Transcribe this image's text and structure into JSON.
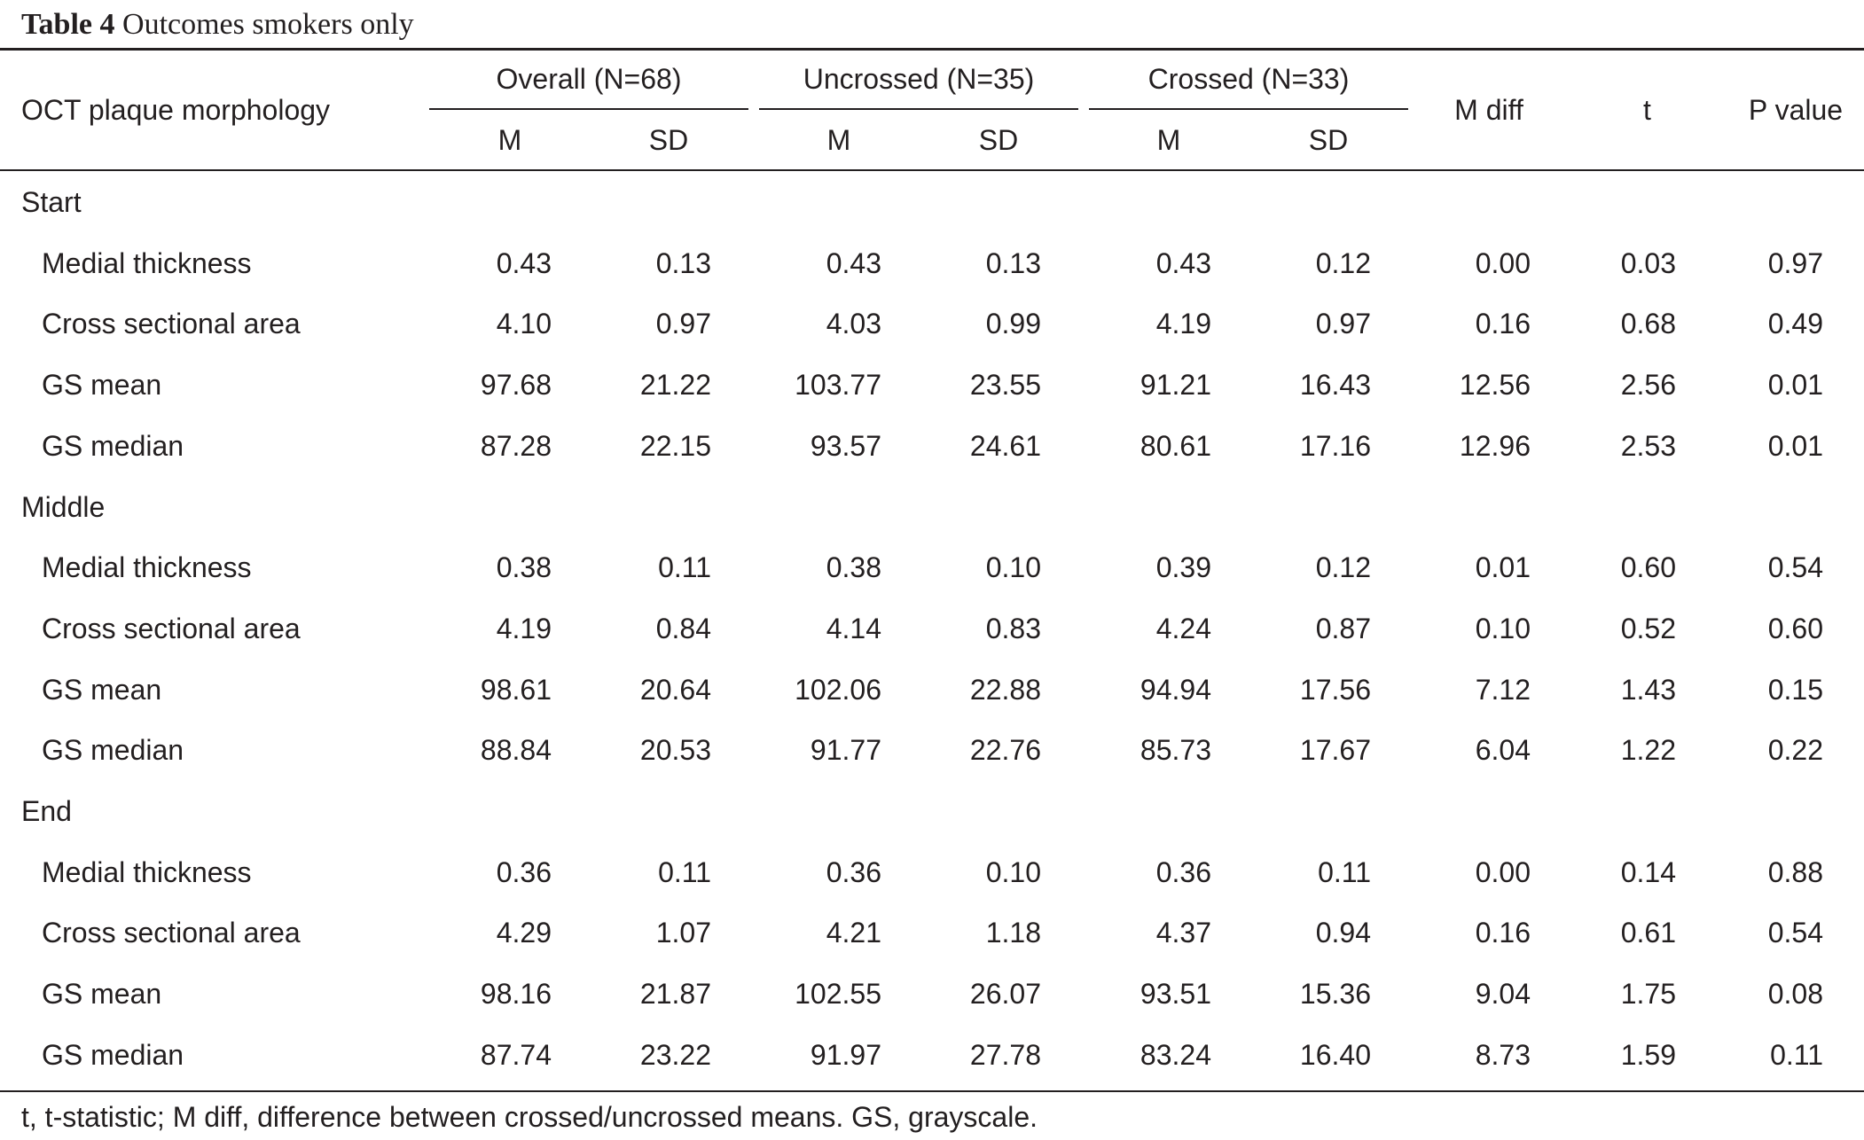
{
  "caption": {
    "label": "Table 4",
    "title": "Outcomes smokers only"
  },
  "header": {
    "row_label": "OCT plaque morphology",
    "groups": [
      "Overall (N=68)",
      "Uncrossed (N=35)",
      "Crossed (N=33)"
    ],
    "sub": [
      "M",
      "SD",
      "M",
      "SD",
      "M",
      "SD"
    ],
    "mdiff": "M diff",
    "t": "t",
    "p": "P value"
  },
  "sections": [
    {
      "name": "Start",
      "rows": [
        {
          "label": "Medial thickness",
          "values": [
            "0.43",
            "0.13",
            "0.43",
            "0.13",
            "0.43",
            "0.12",
            "0.00",
            "0.03",
            "0.97"
          ]
        },
        {
          "label": "Cross sectional area",
          "values": [
            "4.10",
            "0.97",
            "4.03",
            "0.99",
            "4.19",
            "0.97",
            "0.16",
            "0.68",
            "0.49"
          ]
        },
        {
          "label": "GS mean",
          "values": [
            "97.68",
            "21.22",
            "103.77",
            "23.55",
            "91.21",
            "16.43",
            "12.56",
            "2.56",
            "0.01"
          ]
        },
        {
          "label": "GS median",
          "values": [
            "87.28",
            "22.15",
            "93.57",
            "24.61",
            "80.61",
            "17.16",
            "12.96",
            "2.53",
            "0.01"
          ]
        }
      ]
    },
    {
      "name": "Middle",
      "rows": [
        {
          "label": "Medial thickness",
          "values": [
            "0.38",
            "0.11",
            "0.38",
            "0.10",
            "0.39",
            "0.12",
            "0.01",
            "0.60",
            "0.54"
          ]
        },
        {
          "label": "Cross sectional area",
          "values": [
            "4.19",
            "0.84",
            "4.14",
            "0.83",
            "4.24",
            "0.87",
            "0.10",
            "0.52",
            "0.60"
          ]
        },
        {
          "label": "GS mean",
          "values": [
            "98.61",
            "20.64",
            "102.06",
            "22.88",
            "94.94",
            "17.56",
            "7.12",
            "1.43",
            "0.15"
          ]
        },
        {
          "label": "GS median",
          "values": [
            "88.84",
            "20.53",
            "91.77",
            "22.76",
            "85.73",
            "17.67",
            "6.04",
            "1.22",
            "0.22"
          ]
        }
      ]
    },
    {
      "name": "End",
      "rows": [
        {
          "label": "Medial thickness",
          "values": [
            "0.36",
            "0.11",
            "0.36",
            "0.10",
            "0.36",
            "0.11",
            "0.00",
            "0.14",
            "0.88"
          ]
        },
        {
          "label": "Cross sectional area",
          "values": [
            "4.29",
            "1.07",
            "4.21",
            "1.18",
            "4.37",
            "0.94",
            "0.16",
            "0.61",
            "0.54"
          ]
        },
        {
          "label": "GS mean",
          "values": [
            "98.16",
            "21.87",
            "102.55",
            "26.07",
            "93.51",
            "15.36",
            "9.04",
            "1.75",
            "0.08"
          ]
        },
        {
          "label": "GS median",
          "values": [
            "87.74",
            "23.22",
            "91.97",
            "27.78",
            "83.24",
            "16.40",
            "8.73",
            "1.59",
            "0.11"
          ]
        }
      ]
    }
  ],
  "footnote": "t, t-statistic; M diff, difference between crossed/uncrossed means. GS, grayscale."
}
